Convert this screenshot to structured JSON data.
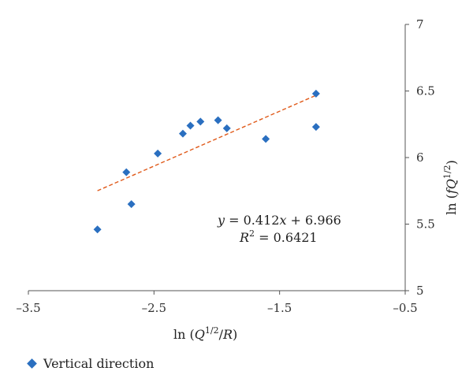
{
  "chart_data": {
    "type": "scatter",
    "xlabel": "ln (Q^1/2/R)",
    "ylabel": "ln (fQ^1/2)",
    "xlim": [
      -3.5,
      -0.5
    ],
    "ylim": [
      5,
      7
    ],
    "x_ticks": [
      -3.5,
      -2.5,
      -1.5,
      -0.5
    ],
    "y_ticks": [
      5,
      5.5,
      6,
      6.5,
      7
    ],
    "x_tick_labels": [
      "–3.5",
      "–2.5",
      "–1.5",
      "–0.5"
    ],
    "y_tick_labels": [
      "5",
      "5.5",
      "6",
      "6.5",
      "7"
    ],
    "y_axis_position": "right",
    "grid": false,
    "legend_position": "bottom-left",
    "series": [
      {
        "name": "Vertical direction",
        "color": "#2a6fc0",
        "marker": "diamond",
        "points": [
          {
            "x": -2.95,
            "y": 5.46
          },
          {
            "x": -2.72,
            "y": 5.89
          },
          {
            "x": -2.68,
            "y": 5.65
          },
          {
            "x": -2.47,
            "y": 6.03
          },
          {
            "x": -2.27,
            "y": 6.18
          },
          {
            "x": -2.21,
            "y": 6.24
          },
          {
            "x": -2.13,
            "y": 6.27
          },
          {
            "x": -1.99,
            "y": 6.28
          },
          {
            "x": -1.92,
            "y": 6.22
          },
          {
            "x": -1.61,
            "y": 6.14
          },
          {
            "x": -1.21,
            "y": 6.48
          },
          {
            "x": -1.21,
            "y": 6.23
          }
        ]
      }
    ],
    "trendline": {
      "slope": 0.412,
      "intercept": 6.966,
      "x_range": [
        -2.95,
        -1.21
      ],
      "color": "#e05a1a",
      "style": "dashed"
    },
    "annotations": {
      "equation": "y = 0.412x + 6.966",
      "r_squared": "R2 = 0.6421"
    }
  }
}
